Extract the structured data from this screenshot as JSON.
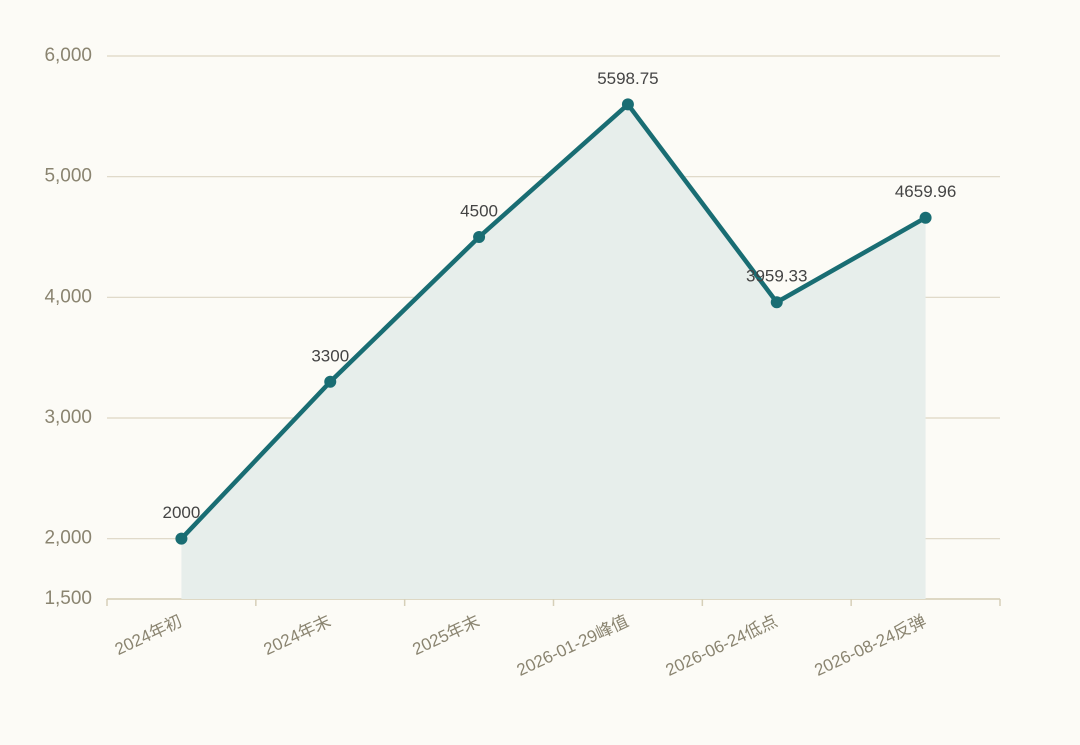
{
  "chart_data": {
    "type": "line",
    "categories": [
      "2024年初",
      "2024年末",
      "2025年末",
      "2026-01-29峰值",
      "2026-06-24低点",
      "2026-08-24反弹"
    ],
    "values": [
      2000,
      3300,
      4500,
      5598.75,
      3959.33,
      4659.96
    ],
    "color": "#196d73",
    "area_color": "#e7eeeb",
    "ylim": [
      1500,
      6000
    ],
    "yticks": [
      {
        "value": 1500,
        "label": "1,500"
      },
      {
        "value": 2000,
        "label": "2,000"
      },
      {
        "value": 3000,
        "label": "3,000"
      },
      {
        "value": 4000,
        "label": "4,000"
      },
      {
        "value": 5000,
        "label": "5,000"
      },
      {
        "value": 6000,
        "label": "6,000"
      }
    ],
    "grid": true
  }
}
